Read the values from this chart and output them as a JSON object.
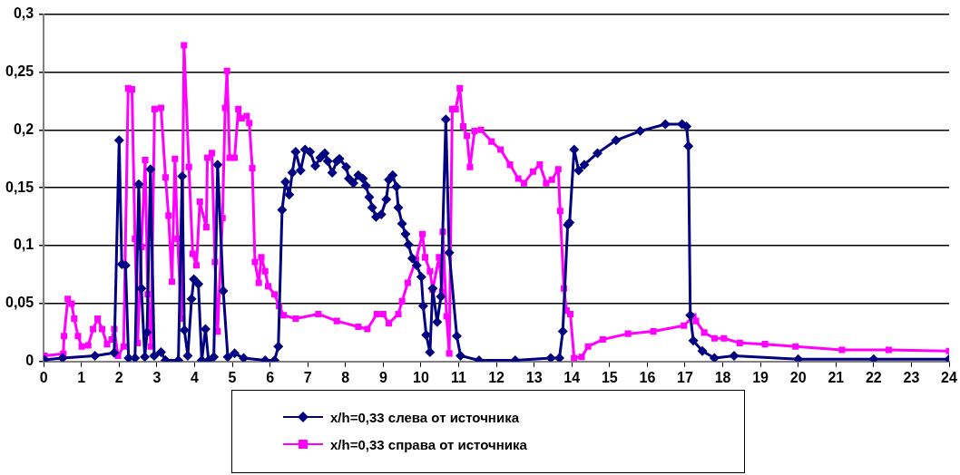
{
  "chart_data": {
    "type": "line",
    "xlim": [
      0,
      24
    ],
    "xticks": [
      0,
      1,
      2,
      3,
      4,
      5,
      6,
      7,
      8,
      9,
      10,
      11,
      12,
      13,
      14,
      15,
      16,
      17,
      18,
      19,
      20,
      21,
      22,
      23,
      24
    ],
    "ylim": [
      0,
      0.3
    ],
    "yticks": [
      {
        "value": 0,
        "label": "0"
      },
      {
        "value": 0.05,
        "label": "0,05"
      },
      {
        "value": 0.1,
        "label": "0,1"
      },
      {
        "value": 0.15,
        "label": "0,15"
      },
      {
        "value": 0.2,
        "label": "0,2"
      },
      {
        "value": 0.25,
        "label": "0,25"
      },
      {
        "value": 0.3,
        "label": "0,3"
      }
    ],
    "grid": "y",
    "legend": "bottom",
    "line_style": "solid",
    "series": [
      {
        "name": "x/h=0,33 слева от источника",
        "color": "#000080",
        "marker": "diamond",
        "x": [
          0.02,
          0.5,
          1.36,
          1.87,
          2.0,
          2.07,
          2.17,
          2.25,
          2.42,
          2.52,
          2.59,
          2.68,
          2.74,
          2.83,
          2.93,
          3.11,
          3.23,
          3.57,
          3.67,
          3.73,
          3.82,
          3.92,
          3.98,
          4.1,
          4.19,
          4.29,
          4.37,
          4.51,
          4.61,
          4.76,
          4.88,
          5.06,
          5.3,
          5.87,
          6.12,
          6.22,
          6.32,
          6.41,
          6.51,
          6.59,
          6.68,
          6.81,
          6.93,
          7.06,
          7.2,
          7.33,
          7.45,
          7.53,
          7.65,
          7.77,
          7.84,
          8.02,
          8.09,
          8.21,
          8.34,
          8.46,
          8.54,
          8.63,
          8.71,
          8.81,
          8.95,
          9.08,
          9.15,
          9.25,
          9.35,
          9.4,
          9.5,
          9.59,
          9.67,
          9.77,
          9.89,
          10.01,
          10.06,
          10.14,
          10.24,
          10.31,
          10.43,
          10.53,
          10.66,
          10.75,
          10.95,
          11.05,
          11.54,
          12.5,
          13.44,
          13.67,
          13.76,
          13.89,
          13.94,
          14.06,
          14.18,
          14.33,
          14.68,
          15.17,
          15.81,
          16.48,
          16.92,
          17.04,
          17.09,
          17.14,
          17.22,
          17.46,
          17.78,
          18.3,
          20,
          22,
          24
        ],
        "values": [
          0.0015,
          0.003,
          0.005,
          0.0075,
          0.191,
          0.084,
          0.083,
          0.003,
          0.003,
          0.153,
          0.063,
          0.004,
          0.025,
          0.166,
          0.005,
          0.008,
          0.001,
          0.001,
          0.16,
          0.027,
          0.005,
          0.054,
          0.071,
          0.067,
          0.001,
          0.028,
          0.001,
          0.004,
          0.17,
          0.061,
          0.004,
          0.007,
          0.003,
          0.001,
          0.001,
          0.013,
          0.131,
          0.155,
          0.144,
          0.163,
          0.181,
          0.165,
          0.183,
          0.181,
          0.169,
          0.176,
          0.18,
          0.173,
          0.163,
          0.173,
          0.175,
          0.168,
          0.158,
          0.154,
          0.161,
          0.158,
          0.152,
          0.142,
          0.133,
          0.125,
          0.127,
          0.14,
          0.157,
          0.161,
          0.151,
          0.133,
          0.119,
          0.11,
          0.101,
          0.089,
          0.083,
          0.073,
          0.048,
          0.023,
          0.008,
          0.063,
          0.034,
          0.056,
          0.209,
          0.094,
          0.022,
          0.005,
          0.001,
          0.001,
          0.003,
          0.003,
          0.026,
          0.118,
          0.12,
          0.183,
          0.165,
          0.17,
          0.18,
          0.191,
          0.199,
          0.205,
          0.205,
          0.203,
          0.186,
          0.04,
          0.018,
          0.009,
          0.003,
          0.005,
          0.002,
          0.002,
          0.002
        ]
      },
      {
        "name": "x/h=0,33 справа от источника",
        "color": "#ff00ff",
        "marker": "square",
        "x": [
          0.02,
          0.52,
          0.54,
          0.64,
          0.74,
          0.81,
          0.91,
          1.01,
          1.18,
          1.31,
          1.43,
          1.55,
          1.68,
          1.8,
          1.87,
          1.97,
          2.12,
          2.24,
          2.34,
          2.42,
          2.49,
          2.59,
          2.69,
          2.76,
          2.84,
          2.94,
          3.11,
          3.23,
          3.31,
          3.4,
          3.48,
          3.55,
          3.65,
          3.72,
          3.85,
          3.95,
          4.05,
          4.14,
          4.31,
          4.34,
          4.46,
          4.54,
          4.61,
          4.74,
          4.81,
          4.86,
          4.93,
          5.06,
          5.16,
          5.25,
          5.38,
          5.45,
          5.53,
          5.6,
          5.7,
          5.77,
          5.87,
          5.95,
          6.12,
          6.24,
          6.36,
          6.68,
          7.28,
          7.77,
          8.34,
          8.58,
          8.83,
          9.0,
          9.15,
          9.4,
          9.5,
          9.65,
          9.87,
          10.04,
          10.11,
          10.24,
          10.31,
          10.48,
          10.56,
          10.58,
          10.68,
          10.75,
          10.83,
          10.92,
          11.03,
          11.12,
          11.22,
          11.3,
          11.42,
          11.59,
          11.87,
          12.11,
          12.36,
          12.58,
          12.73,
          12.97,
          13.15,
          13.32,
          13.47,
          13.64,
          13.69,
          13.79,
          13.86,
          13.96,
          14.06,
          14.26,
          14.43,
          14.82,
          15.49,
          16.16,
          16.97,
          17.22,
          17.29,
          17.51,
          17.78,
          18.03,
          18.45,
          19.12,
          19.93,
          21.16,
          22.4,
          24
        ],
        "values": [
          0.005,
          0.0067,
          0.022,
          0.054,
          0.05,
          0.037,
          0.022,
          0.013,
          0.014,
          0.028,
          0.037,
          0.028,
          0.015,
          0.019,
          0.028,
          0.005,
          0.013,
          0.236,
          0.235,
          0.106,
          0.016,
          0.099,
          0.174,
          0.058,
          0.013,
          0.218,
          0.219,
          0.159,
          0.126,
          0.069,
          0.175,
          0.106,
          0.037,
          0.273,
          0.168,
          0.093,
          0.083,
          0.138,
          0.116,
          0.176,
          0.18,
          0.086,
          0.026,
          0.124,
          0.219,
          0.251,
          0.176,
          0.176,
          0.218,
          0.21,
          0.212,
          0.206,
          0.167,
          0.086,
          0.068,
          0.09,
          0.078,
          0.065,
          0.058,
          0.048,
          0.04,
          0.037,
          0.041,
          0.035,
          0.03,
          0.028,
          0.041,
          0.041,
          0.033,
          0.041,
          0.052,
          0.068,
          0.088,
          0.11,
          0.09,
          0.078,
          0.062,
          0.09,
          0.06,
          0.112,
          0.039,
          0.007,
          0.218,
          0.218,
          0.236,
          0.203,
          0.195,
          0.168,
          0.199,
          0.2,
          0.19,
          0.183,
          0.17,
          0.158,
          0.154,
          0.164,
          0.17,
          0.154,
          0.157,
          0.166,
          0.13,
          0.063,
          0.044,
          0.041,
          0.003,
          0.004,
          0.013,
          0.019,
          0.024,
          0.026,
          0.031,
          0.039,
          0.035,
          0.025,
          0.02,
          0.02,
          0.016,
          0.015,
          0.013,
          0.01,
          0.01,
          0.009
        ]
      }
    ]
  }
}
